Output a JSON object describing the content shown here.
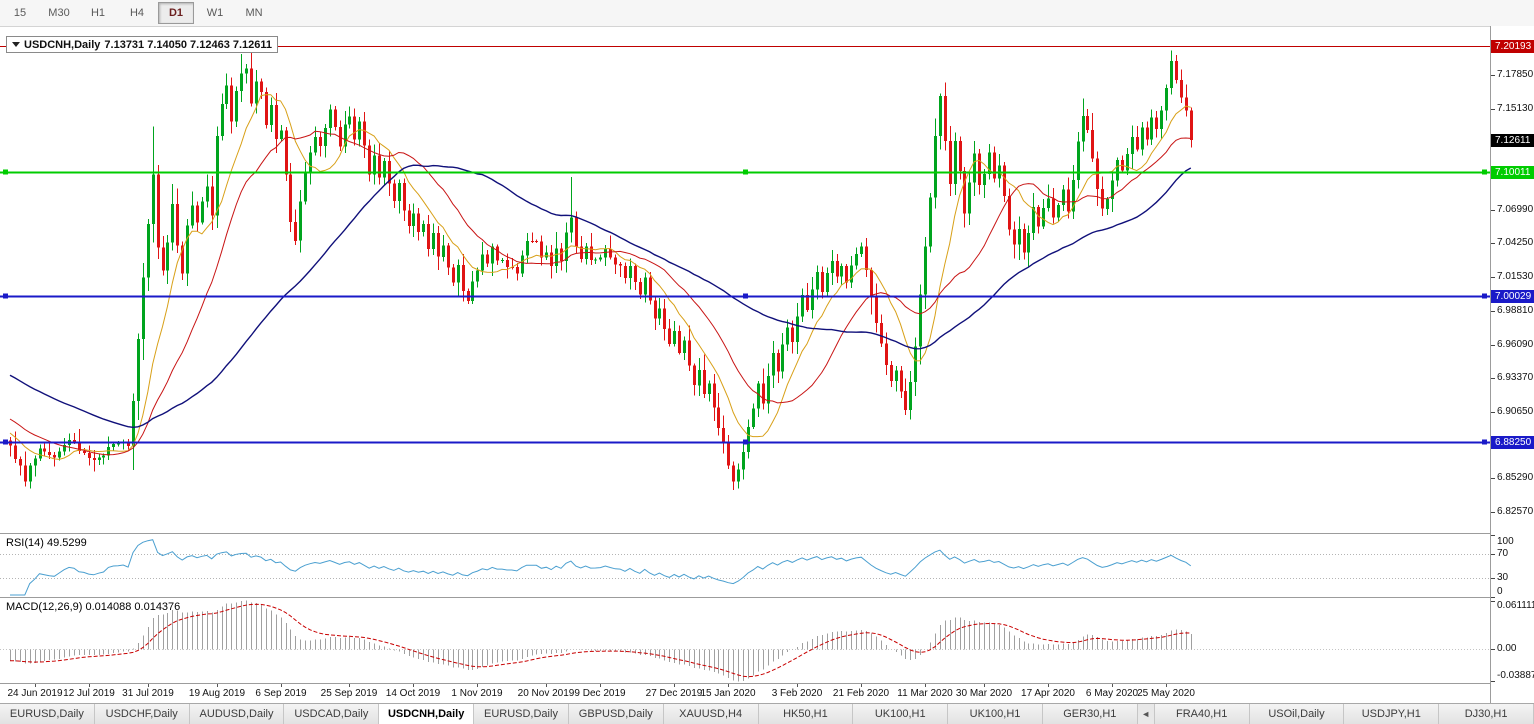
{
  "toolbar": {
    "timeframes": [
      {
        "label": "15",
        "active": false
      },
      {
        "label": "M30",
        "active": false
      },
      {
        "label": "H1",
        "active": false
      },
      {
        "label": "H4",
        "active": false
      },
      {
        "label": "D1",
        "active": true
      },
      {
        "label": "W1",
        "active": false
      },
      {
        "label": "MN",
        "active": false
      }
    ]
  },
  "chart": {
    "title": {
      "symbol": "USDCNH,Daily",
      "ohlc": "7.13731 7.14050 7.12463 7.12611"
    }
  },
  "indicators": {
    "rsi": {
      "label": "RSI(14) 49.5299",
      "line_color": "#4a9fd0",
      "levels": [
        70,
        30
      ],
      "axis_labels": [
        [
          "100",
          100
        ],
        [
          "70",
          70
        ],
        [
          "30",
          30
        ],
        [
          "0",
          0
        ]
      ]
    },
    "macd": {
      "label": "MACD(12,26,9) 0.014088 0.014376",
      "hist_color": "#a0a0a0",
      "signal_color": "#c80000",
      "axis_top": "0.061111",
      "axis_zero": "0.00",
      "axis_bottom": "-0.038877"
    }
  },
  "chart_data": {
    "type": "candlestick",
    "symbol": "USDCNH",
    "period": "Daily",
    "ohlc_current": {
      "open": 7.13731,
      "high": 7.1405,
      "low": 7.12463,
      "close": 7.12611
    },
    "style": {
      "up_color": "#00a41e",
      "down_color": "#e01414",
      "background": "#ffffff",
      "grid": false
    },
    "y_axis": {
      "ticks": [
        [
          "7.17850",
          7.1785
        ],
        [
          "7.15130",
          7.1513
        ],
        [
          "7.06990",
          7.0699
        ],
        [
          "7.04250",
          7.0425
        ],
        [
          "7.01530",
          7.0153
        ],
        [
          "6.98810",
          6.9881
        ],
        [
          "6.96090",
          6.9609
        ],
        [
          "6.93370",
          6.9337
        ],
        [
          "6.90650",
          6.9065
        ],
        [
          "6.85290",
          6.8529
        ],
        [
          "6.82570",
          6.8257
        ]
      ],
      "current_price": {
        "label": "7.12611",
        "value": 7.12611,
        "bg": "#000000"
      }
    },
    "x_axis": {
      "dates": [
        [
          "24 Jun 2019",
          5
        ],
        [
          "12 Jul 2019",
          16
        ],
        [
          "31 Jul 2019",
          28
        ],
        [
          "19 Aug 2019",
          42
        ],
        [
          "6 Sep 2019",
          55
        ],
        [
          "25 Sep 2019",
          69
        ],
        [
          "14 Oct 2019",
          82
        ],
        [
          "1 Nov 2019",
          95
        ],
        [
          "20 Nov 2019",
          109
        ],
        [
          "9 Dec 2019",
          120
        ],
        [
          "27 Dec 2019",
          135
        ],
        [
          "15 Jan 2020",
          146
        ],
        [
          "3 Feb 2020",
          160
        ],
        [
          "21 Feb 2020",
          173
        ],
        [
          "11 Mar 2020",
          186
        ],
        [
          "30 Mar 2020",
          198
        ],
        [
          "17 Apr 2020",
          211
        ],
        [
          "6 May 2020",
          224
        ],
        [
          "25 May 2020",
          235
        ]
      ]
    },
    "levels": [
      {
        "label": "7.20193",
        "value": 7.20193,
        "color": "#c00000",
        "width": 1,
        "selected": false
      },
      {
        "label": "7.10011",
        "value": 7.10011,
        "color": "#00cc00",
        "width": 2,
        "selected": true
      },
      {
        "label": "7.00029",
        "value": 7.00029,
        "color": "#1a1ac8",
        "width": 2,
        "selected": true
      },
      {
        "label": "6.88250",
        "value": 6.8825,
        "color": "#1a1ac8",
        "width": 2,
        "selected": true
      }
    ],
    "moving_averages": [
      {
        "type": "sma",
        "period": 10,
        "color": "#d8a018",
        "width": 1
      },
      {
        "type": "sma",
        "period": 21,
        "color": "#c81414",
        "width": 1
      },
      {
        "type": "sma",
        "period": 55,
        "color": "#10107a",
        "width": 1.4
      }
    ],
    "indicators": {
      "rsi": {
        "period": 14,
        "current": 49.5299
      },
      "macd": {
        "fast": 12,
        "slow": 26,
        "signal": 9,
        "current_macd": 0.014088,
        "current_signal": 0.014376
      }
    },
    "candles": {
      "count": 241,
      "last_close": 7.12611,
      "prehistory": {
        "count": 60,
        "from": 7.005,
        "to": 6.882
      },
      "wick_high_extra": {
        "29": 0.03,
        "33": 0.012,
        "47": 0.01,
        "114": 0.028,
        "236": 0.005
      },
      "close_anchors": [
        [
          0,
          6.878
        ],
        [
          2,
          6.862
        ],
        [
          3,
          6.85
        ],
        [
          4,
          6.862
        ],
        [
          6,
          6.875
        ],
        [
          9,
          6.868
        ],
        [
          12,
          6.885
        ],
        [
          15,
          6.872
        ],
        [
          18,
          6.868
        ],
        [
          21,
          6.882
        ],
        [
          24,
          6.88
        ],
        [
          25,
          6.915
        ],
        [
          26,
          6.965
        ],
        [
          27,
          7.015
        ],
        [
          28,
          7.06
        ],
        [
          29,
          7.1
        ],
        [
          30,
          7.04
        ],
        [
          31,
          7.02
        ],
        [
          32,
          7.045
        ],
        [
          33,
          7.075
        ],
        [
          34,
          7.04
        ],
        [
          35,
          7.02
        ],
        [
          36,
          7.055
        ],
        [
          37,
          7.075
        ],
        [
          38,
          7.06
        ],
        [
          39,
          7.075
        ],
        [
          40,
          7.09
        ],
        [
          41,
          7.065
        ],
        [
          42,
          7.13
        ],
        [
          43,
          7.155
        ],
        [
          44,
          7.17
        ],
        [
          45,
          7.14
        ],
        [
          46,
          7.165
        ],
        [
          47,
          7.18
        ],
        [
          48,
          7.185
        ],
        [
          49,
          7.155
        ],
        [
          50,
          7.175
        ],
        [
          51,
          7.165
        ],
        [
          52,
          7.14
        ],
        [
          53,
          7.155
        ],
        [
          54,
          7.125
        ],
        [
          55,
          7.135
        ],
        [
          56,
          7.1
        ],
        [
          57,
          7.06
        ],
        [
          58,
          7.045
        ],
        [
          59,
          7.075
        ],
        [
          60,
          7.1
        ],
        [
          61,
          7.115
        ],
        [
          62,
          7.13
        ],
        [
          63,
          7.12
        ],
        [
          64,
          7.135
        ],
        [
          65,
          7.15
        ],
        [
          66,
          7.135
        ],
        [
          67,
          7.12
        ],
        [
          68,
          7.14
        ],
        [
          69,
          7.145
        ],
        [
          70,
          7.125
        ],
        [
          71,
          7.14
        ],
        [
          72,
          7.12
        ],
        [
          73,
          7.1
        ],
        [
          74,
          7.115
        ],
        [
          75,
          7.095
        ],
        [
          76,
          7.11
        ],
        [
          77,
          7.09
        ],
        [
          78,
          7.075
        ],
        [
          79,
          7.09
        ],
        [
          80,
          7.07
        ],
        [
          81,
          7.055
        ],
        [
          82,
          7.065
        ],
        [
          83,
          7.05
        ],
        [
          84,
          7.06
        ],
        [
          85,
          7.04
        ],
        [
          86,
          7.05
        ],
        [
          87,
          7.03
        ],
        [
          88,
          7.04
        ],
        [
          89,
          7.025
        ],
        [
          90,
          7.01
        ],
        [
          91,
          7.025
        ],
        [
          92,
          7.005
        ],
        [
          93,
          6.995
        ],
        [
          94,
          7.01
        ],
        [
          95,
          7.02
        ],
        [
          96,
          7.035
        ],
        [
          97,
          7.025
        ],
        [
          98,
          7.04
        ],
        [
          99,
          7.03
        ],
        [
          101,
          7.025
        ],
        [
          103,
          7.02
        ],
        [
          105,
          7.045
        ],
        [
          107,
          7.045
        ],
        [
          108,
          7.03
        ],
        [
          109,
          7.035
        ],
        [
          110,
          7.025
        ],
        [
          111,
          7.04
        ],
        [
          112,
          7.03
        ],
        [
          113,
          7.05
        ],
        [
          114,
          7.065
        ],
        [
          115,
          7.04
        ],
        [
          116,
          7.03
        ],
        [
          117,
          7.04
        ],
        [
          118,
          7.03
        ],
        [
          120,
          7.03
        ],
        [
          121,
          7.04
        ],
        [
          122,
          7.03
        ],
        [
          124,
          7.025
        ],
        [
          125,
          7.015
        ],
        [
          126,
          7.025
        ],
        [
          127,
          7.01
        ],
        [
          128,
          7
        ],
        [
          129,
          7.015
        ],
        [
          130,
          6.995
        ],
        [
          131,
          6.98
        ],
        [
          132,
          6.99
        ],
        [
          133,
          6.975
        ],
        [
          134,
          6.96
        ],
        [
          135,
          6.97
        ],
        [
          136,
          6.955
        ],
        [
          137,
          6.965
        ],
        [
          138,
          6.945
        ],
        [
          139,
          6.93
        ],
        [
          140,
          6.94
        ],
        [
          141,
          6.92
        ],
        [
          142,
          6.93
        ],
        [
          143,
          6.91
        ],
        [
          144,
          6.895
        ],
        [
          145,
          6.88
        ],
        [
          146,
          6.865
        ],
        [
          147,
          6.85
        ],
        [
          148,
          6.86
        ],
        [
          149,
          6.875
        ],
        [
          150,
          6.895
        ],
        [
          151,
          6.91
        ],
        [
          152,
          6.93
        ],
        [
          153,
          6.915
        ],
        [
          154,
          6.935
        ],
        [
          155,
          6.955
        ],
        [
          156,
          6.94
        ],
        [
          157,
          6.96
        ],
        [
          158,
          6.975
        ],
        [
          159,
          6.965
        ],
        [
          160,
          6.985
        ],
        [
          161,
          7
        ],
        [
          162,
          6.99
        ],
        [
          163,
          7.005
        ],
        [
          164,
          7.02
        ],
        [
          165,
          7.005
        ],
        [
          166,
          7.02
        ],
        [
          167,
          7.03
        ],
        [
          168,
          7.015
        ],
        [
          169,
          7.025
        ],
        [
          170,
          7.01
        ],
        [
          171,
          7.025
        ],
        [
          172,
          7.035
        ],
        [
          173,
          7.04
        ],
        [
          174,
          7.02
        ],
        [
          175,
          7
        ],
        [
          176,
          6.98
        ],
        [
          177,
          6.96
        ],
        [
          178,
          6.945
        ],
        [
          179,
          6.93
        ],
        [
          180,
          6.94
        ],
        [
          181,
          6.925
        ],
        [
          182,
          6.91
        ],
        [
          183,
          6.93
        ],
        [
          184,
          6.96
        ],
        [
          185,
          7
        ],
        [
          186,
          7.04
        ],
        [
          187,
          7.08
        ],
        [
          188,
          7.13
        ],
        [
          189,
          7.16
        ],
        [
          190,
          7.125
        ],
        [
          191,
          7.09
        ],
        [
          192,
          7.125
        ],
        [
          193,
          7.1
        ],
        [
          194,
          7.065
        ],
        [
          195,
          7.09
        ],
        [
          196,
          7.115
        ],
        [
          197,
          7.09
        ],
        [
          198,
          7.1
        ],
        [
          199,
          7.115
        ],
        [
          200,
          7.095
        ],
        [
          201,
          7.105
        ],
        [
          202,
          7.08
        ],
        [
          203,
          7.055
        ],
        [
          204,
          7.04
        ],
        [
          205,
          7.055
        ],
        [
          206,
          7.035
        ],
        [
          207,
          7.05
        ],
        [
          208,
          7.07
        ],
        [
          209,
          7.055
        ],
        [
          210,
          7.07
        ],
        [
          211,
          7.08
        ],
        [
          212,
          7.065
        ],
        [
          213,
          7.075
        ],
        [
          214,
          7.085
        ],
        [
          215,
          7.07
        ],
        [
          216,
          7.095
        ],
        [
          217,
          7.125
        ],
        [
          218,
          7.145
        ],
        [
          219,
          7.135
        ],
        [
          220,
          7.11
        ],
        [
          221,
          7.085
        ],
        [
          222,
          7.07
        ],
        [
          223,
          7.08
        ],
        [
          224,
          7.095
        ],
        [
          225,
          7.11
        ],
        [
          226,
          7.1
        ],
        [
          227,
          7.115
        ],
        [
          228,
          7.13
        ],
        [
          229,
          7.12
        ],
        [
          230,
          7.135
        ],
        [
          231,
          7.125
        ],
        [
          232,
          7.145
        ],
        [
          233,
          7.135
        ],
        [
          234,
          7.15
        ],
        [
          235,
          7.17
        ],
        [
          236,
          7.19
        ],
        [
          237,
          7.175
        ],
        [
          238,
          7.16
        ],
        [
          239,
          7.15
        ],
        [
          240,
          7.12611
        ]
      ]
    }
  },
  "tabs": [
    {
      "label": "EURUSD,Daily",
      "active": false
    },
    {
      "label": "USDCHF,Daily",
      "active": false
    },
    {
      "label": "AUDUSD,Daily",
      "active": false
    },
    {
      "label": "USDCAD,Daily",
      "active": false
    },
    {
      "label": "USDCNH,Daily",
      "active": true
    },
    {
      "label": "EURUSD,Daily",
      "active": false
    },
    {
      "label": "GBPUSD,Daily",
      "active": false
    },
    {
      "label": "XAUUSD,H4",
      "active": false
    },
    {
      "label": "HK50,H1",
      "active": false
    },
    {
      "label": "UK100,H1",
      "active": false
    },
    {
      "label": "UK100,H1",
      "active": false
    },
    {
      "label": "GER30,H1",
      "active": false
    },
    {
      "label": "◄",
      "scroll": true
    },
    {
      "label": "FRA40,H1",
      "active": false
    },
    {
      "label": "USOil,Daily",
      "active": false
    },
    {
      "label": "USDJPY,H1",
      "active": false
    },
    {
      "label": "DJ30,H1",
      "active": false
    }
  ]
}
